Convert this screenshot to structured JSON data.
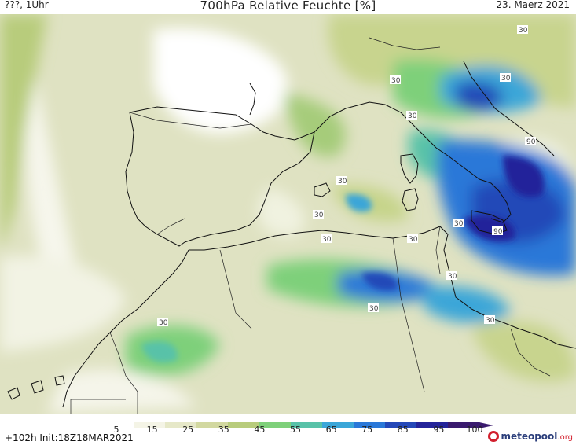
{
  "header": {
    "left": "???, 1Uhr",
    "title": "700hPa Relative Feuchte [%]",
    "right": "23. Maerz 2021"
  },
  "footer": {
    "run_info": "+102h  Init:18Z18MAR2021",
    "logo_name": "meteopool",
    "logo_suffix": ".org"
  },
  "colorbar": {
    "labels": [
      "5",
      "15",
      "25",
      "35",
      "45",
      "55",
      "65",
      "75",
      "85",
      "95",
      "100"
    ],
    "colors": [
      "#ffffff",
      "#f4f4e6",
      "#e6e8c8",
      "#d2d8a0",
      "#b8cc7c",
      "#7ed07a",
      "#58c2a8",
      "#3aa6d8",
      "#2a78d8",
      "#2448b8",
      "#24249a",
      "#3a1a6e"
    ]
  },
  "contour_labels": [
    "30",
    "30",
    "30",
    "30",
    "30",
    "30",
    "30",
    "30",
    "30",
    "30",
    "30",
    "30",
    "30",
    "90",
    "90"
  ]
}
